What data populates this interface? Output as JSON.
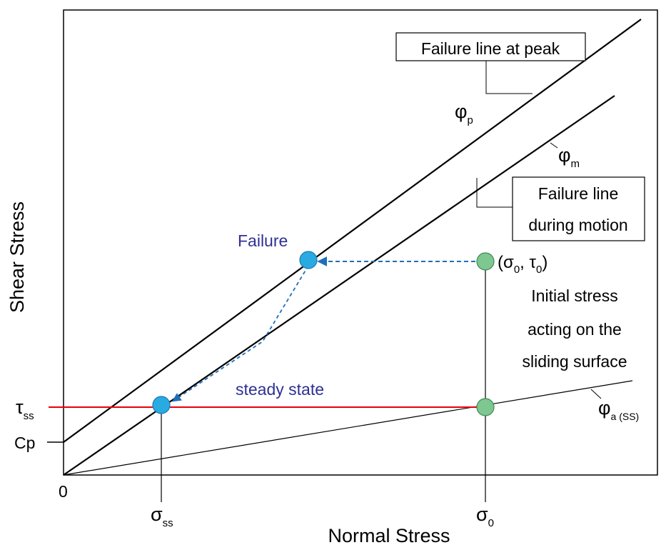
{
  "axes": {
    "x_label": "Normal Stress",
    "y_label": "Shear Stress",
    "origin_label": "0"
  },
  "ticks": {
    "y_tau_ss": {
      "main": "τ",
      "sub": "ss"
    },
    "y_cp": "Cp",
    "x_sigma_ss": {
      "main": "σ",
      "sub": "ss"
    },
    "x_sigma0": {
      "main": "σ",
      "sub": "0"
    }
  },
  "lines": {
    "peak_box": [
      "Failure line at peak"
    ],
    "motion_box": [
      "Failure line",
      "during motion"
    ],
    "phi_p": {
      "main": "φ",
      "sub": "p"
    },
    "phi_m": {
      "main": "φ",
      "sub": "m"
    },
    "phi_a": {
      "main": "φ",
      "sub": "a (SS)"
    }
  },
  "points": {
    "failure_label": "Failure",
    "steady_label": "steady state",
    "initial_coord": {
      "open": "(σ",
      "sub1": "0",
      "comma": ",  τ",
      "sub2": "0",
      "close": ")"
    },
    "initial_desc": [
      "Initial stress",
      "acting on the",
      "sliding surface"
    ]
  },
  "colors": {
    "failure_point": "#29abe2",
    "initial_point": "#7fc790",
    "steady_line": "#e8000b",
    "path": "#1f6fb8",
    "label_blue": "#2e3192"
  }
}
